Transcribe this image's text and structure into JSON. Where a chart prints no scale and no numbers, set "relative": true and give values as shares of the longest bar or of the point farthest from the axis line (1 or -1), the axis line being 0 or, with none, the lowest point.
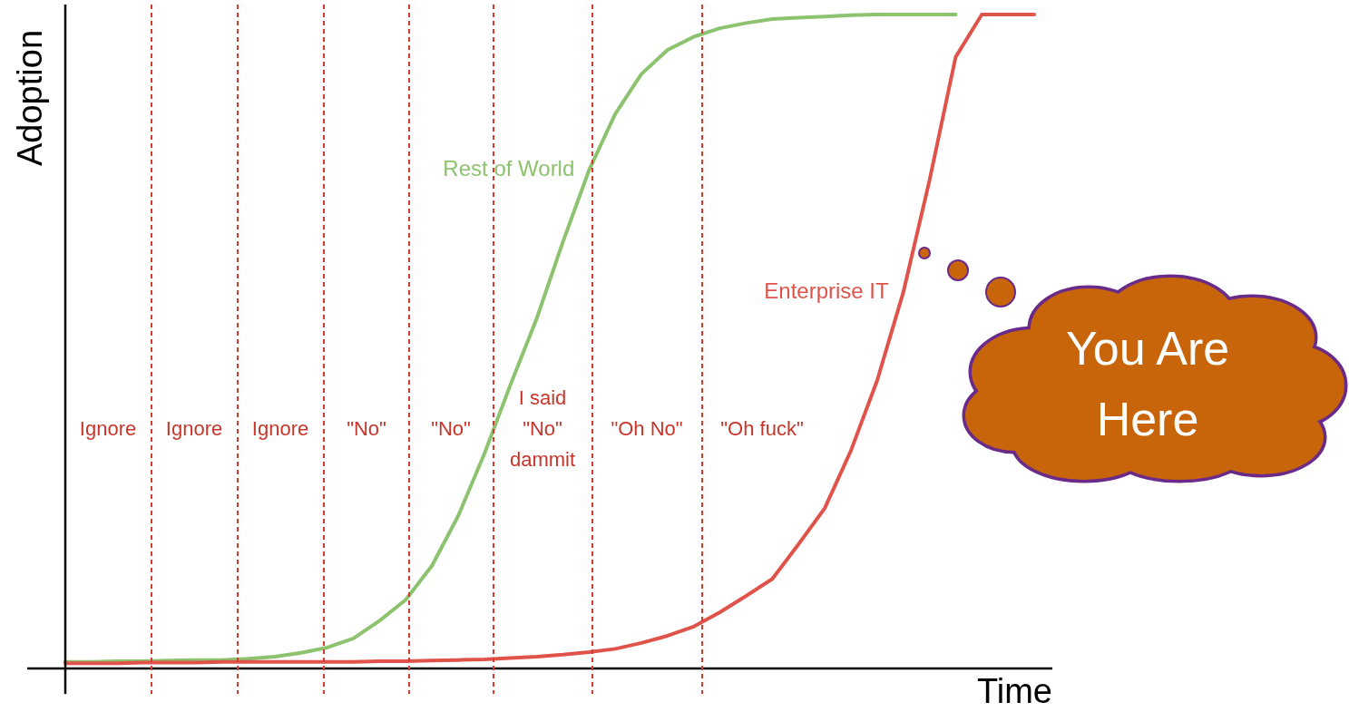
{
  "chart_data": {
    "type": "line",
    "relative": true,
    "xlabel": "Time",
    "ylabel": "Adoption",
    "legend": false,
    "grid": "x",
    "marker": "none",
    "line_style": "solid",
    "categories": [
      null,
      null,
      null,
      null,
      null,
      null,
      null,
      null,
      null,
      null,
      null,
      null,
      null,
      null,
      null,
      null,
      null,
      null,
      null,
      null,
      null,
      null,
      null,
      null,
      null,
      null,
      null,
      null,
      null,
      null,
      null,
      null,
      null,
      null,
      null,
      null,
      null,
      null
    ],
    "series": [
      {
        "name": "Rest of World",
        "color": "#8dc26f",
        "values": [
          0.01,
          0.01,
          0.011,
          0.011,
          0.012,
          0.013,
          0.013,
          0.015,
          0.018,
          0.024,
          0.032,
          0.046,
          0.073,
          0.105,
          0.157,
          0.233,
          0.328,
          0.434,
          0.535,
          0.652,
          0.762,
          0.848,
          0.909,
          0.946,
          0.966,
          0.979,
          0.987,
          0.993,
          0.995,
          0.997,
          0.999,
          1,
          1,
          1,
          1,
          null,
          null,
          null
        ]
      },
      {
        "name": "Enterprise IT",
        "color": "#e0534a",
        "values": [
          0.008,
          0.008,
          0.008,
          0.009,
          0.009,
          0.009,
          0.01,
          0.01,
          0.01,
          0.01,
          0.01,
          0.01,
          0.011,
          0.011,
          0.012,
          0.013,
          0.014,
          0.016,
          0.018,
          0.021,
          0.025,
          0.03,
          0.039,
          0.05,
          0.064,
          0.086,
          0.111,
          0.137,
          0.19,
          0.245,
          0.333,
          0.44,
          0.575,
          0.746,
          0.935,
          1,
          1,
          1
        ]
      }
    ],
    "annotations": [
      "Ignore",
      "Ignore",
      "Ignore",
      "\"No\"",
      "\"No\"",
      "I said\n\"No\"\ndammit",
      "\"Oh No\"",
      "\"Oh fuck\"",
      "You Are Here"
    ]
  }
}
